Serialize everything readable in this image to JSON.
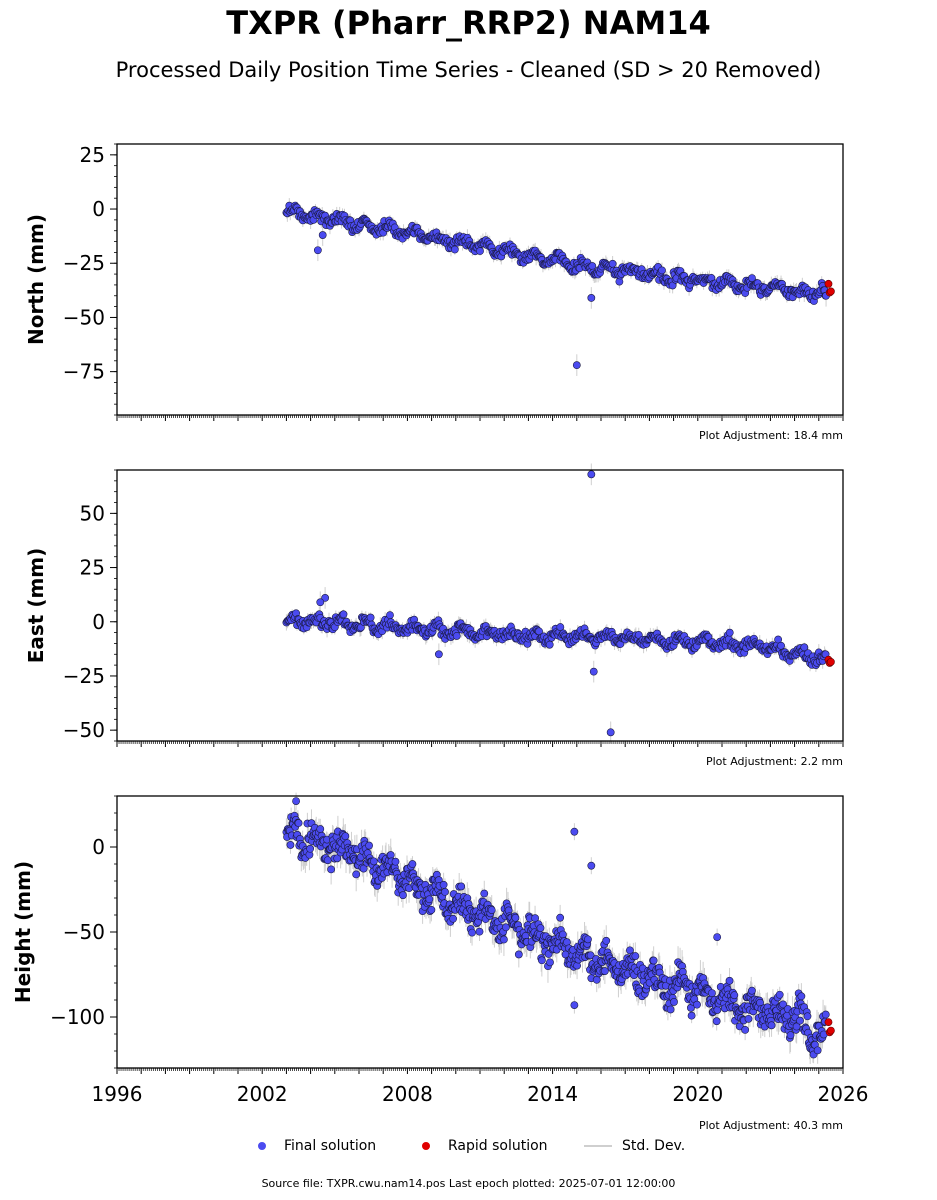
{
  "page": {
    "title": "TXPR (Pharr_RRP2) NAM14",
    "subtitle": "Processed Daily Position Time Series - Cleaned (SD > 20 Removed)",
    "footer": "Source file: TXPR.cwu.nam14.pos  Last epoch plotted: 2025-07-01 12:00:00"
  },
  "legend": {
    "final_label": "Final solution",
    "rapid_label": "Rapid solution",
    "std_label": "Std. Dev."
  },
  "colors": {
    "final": "#4b4bf0",
    "rapid": "#e00000",
    "std": "#cfcfcf"
  },
  "chart_data": [
    {
      "type": "scatter",
      "ylabel": "North (mm)",
      "adjustment": "Plot Adjustment: 18.4 mm",
      "xlim": [
        1996,
        2026
      ],
      "ylim": [
        -95,
        30
      ],
      "yticks": [
        25,
        0,
        -25,
        -50,
        -75
      ],
      "trend": [
        [
          2003.0,
          -1
        ],
        [
          2008.0,
          -11
        ],
        [
          2012.0,
          -19
        ],
        [
          2015.0,
          -26
        ],
        [
          2020.0,
          -33
        ],
        [
          2025.0,
          -39
        ]
      ],
      "scatter": 2.5,
      "rapid": [
        [
          2025.4,
          -34.5
        ],
        [
          2025.45,
          -38.5
        ],
        [
          2025.5,
          -38.0
        ]
      ],
      "outliers": [
        [
          2004.3,
          -19
        ],
        [
          2004.5,
          -12
        ],
        [
          2015.0,
          -72
        ],
        [
          2015.6,
          -41
        ],
        [
          2025.3,
          -40
        ]
      ]
    },
    {
      "type": "scatter",
      "ylabel": "East (mm)",
      "adjustment": "Plot Adjustment: 2.2 mm",
      "xlim": [
        1996,
        2026
      ],
      "ylim": [
        -55,
        70
      ],
      "yticks": [
        50,
        25,
        0,
        -25,
        -50
      ],
      "trend": [
        [
          2003.0,
          1
        ],
        [
          2008.0,
          -3
        ],
        [
          2012.0,
          -6
        ],
        [
          2016.0,
          -7
        ],
        [
          2020.0,
          -9
        ],
        [
          2022.5,
          -11
        ],
        [
          2025.0,
          -17
        ]
      ],
      "scatter": 2.5,
      "rapid": [
        [
          2025.4,
          -17.5
        ],
        [
          2025.45,
          -19.0
        ],
        [
          2025.5,
          -18.5
        ]
      ],
      "outliers": [
        [
          2004.6,
          11
        ],
        [
          2004.4,
          9
        ],
        [
          2009.3,
          -15
        ],
        [
          2015.6,
          68
        ],
        [
          2015.7,
          -23
        ],
        [
          2016.4,
          -51
        ]
      ]
    },
    {
      "type": "scatter",
      "ylabel": "Height (mm)",
      "adjustment": "Plot Adjustment: 40.3 mm",
      "xlim": [
        1996,
        2026
      ],
      "ylim": [
        -130,
        30
      ],
      "yticks": [
        0,
        -50,
        -100
      ],
      "xticks": [
        "1996",
        "2002",
        "2008",
        "2014",
        "2020",
        "2026"
      ],
      "trend": [
        [
          2003.0,
          8
        ],
        [
          2006.0,
          -5
        ],
        [
          2009.0,
          -28
        ],
        [
          2012.0,
          -45
        ],
        [
          2015.0,
          -62
        ],
        [
          2018.0,
          -78
        ],
        [
          2021.0,
          -90
        ],
        [
          2024.0,
          -100
        ],
        [
          2025.0,
          -110
        ]
      ],
      "scatter": 9,
      "rapid": [
        [
          2025.4,
          -103
        ],
        [
          2025.45,
          -109
        ],
        [
          2025.5,
          -108
        ]
      ],
      "outliers": [
        [
          2003.4,
          27
        ],
        [
          2014.9,
          9
        ],
        [
          2015.6,
          -11
        ],
        [
          2014.9,
          -93
        ],
        [
          2020.8,
          -53
        ]
      ]
    }
  ]
}
